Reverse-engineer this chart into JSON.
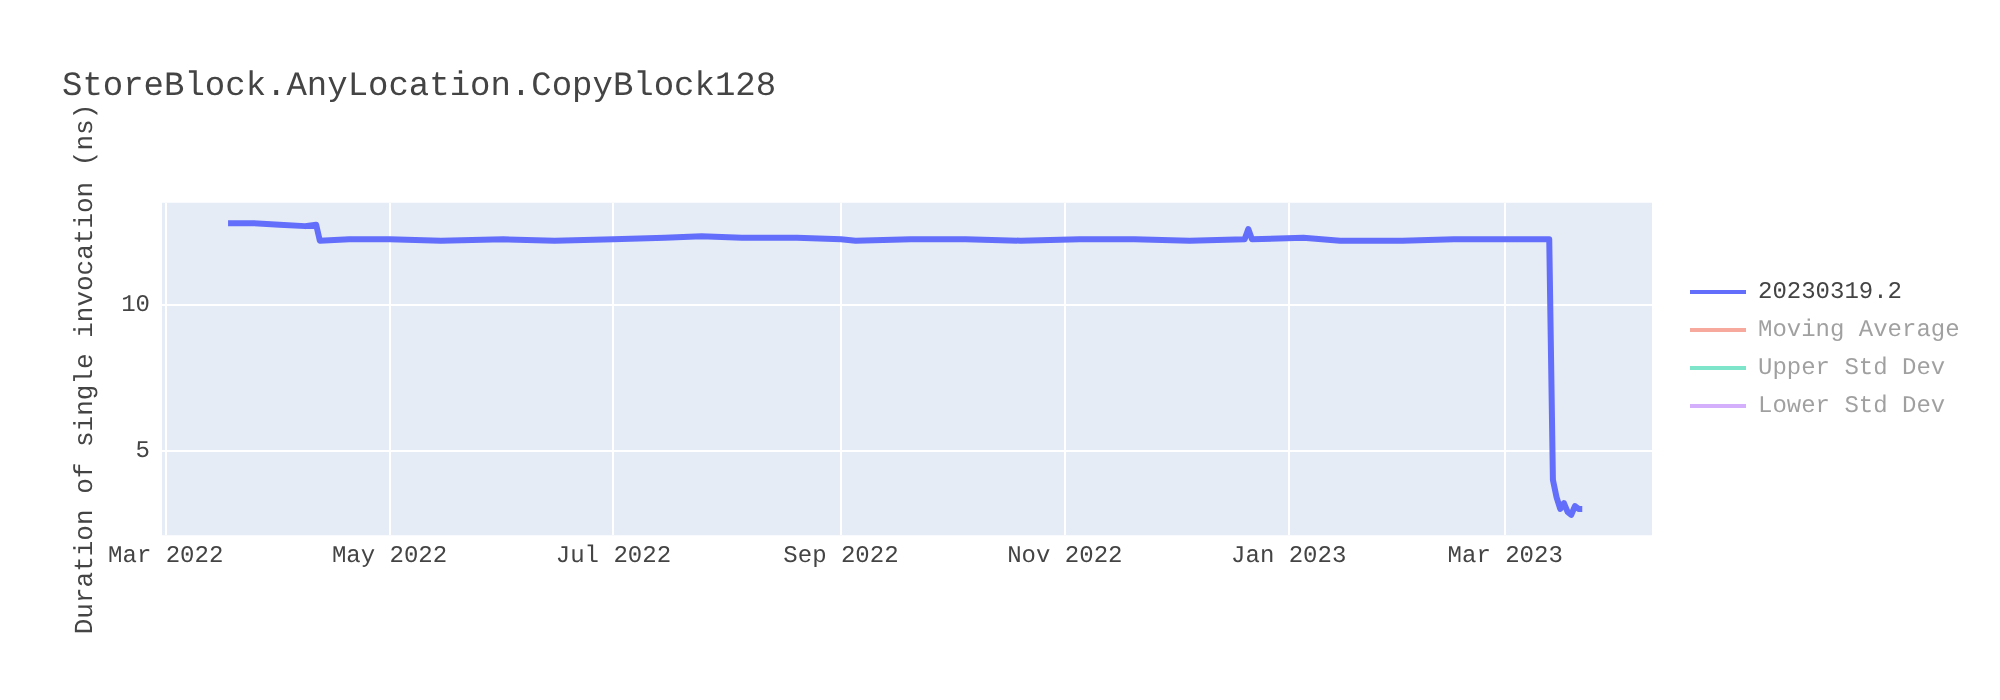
{
  "chart_data": {
    "type": "line",
    "title": "StoreBlock.AnyLocation.CopyBlock128",
    "ylabel": "Duration of single invocation (ns)",
    "x": [
      "2022-03-18",
      "2022-03-25",
      "2022-04-01",
      "2022-04-08",
      "2022-04-11",
      "2022-04-12",
      "2022-04-20",
      "2022-05-01",
      "2022-05-15",
      "2022-06-01",
      "2022-06-15",
      "2022-07-01",
      "2022-07-15",
      "2022-07-25",
      "2022-08-05",
      "2022-08-20",
      "2022-09-01",
      "2022-09-05",
      "2022-09-20",
      "2022-10-05",
      "2022-10-20",
      "2022-11-05",
      "2022-11-20",
      "2022-12-05",
      "2022-12-20",
      "2022-12-21",
      "2022-12-22",
      "2023-01-05",
      "2023-01-15",
      "2023-02-01",
      "2023-02-15",
      "2023-03-01",
      "2023-03-13",
      "2023-03-14",
      "2023-03-15",
      "2023-03-16",
      "2023-03-17",
      "2023-03-18",
      "2023-03-19",
      "2023-03-20",
      "2023-03-21",
      "2023-03-22"
    ],
    "series": [
      {
        "name": "20230319.2",
        "color": "#636efa",
        "values": [
          12.8,
          12.8,
          12.75,
          12.7,
          12.75,
          12.2,
          12.25,
          12.25,
          12.2,
          12.25,
          12.2,
          12.25,
          12.3,
          12.35,
          12.3,
          12.3,
          12.25,
          12.2,
          12.25,
          12.25,
          12.2,
          12.25,
          12.25,
          12.2,
          12.25,
          12.6,
          12.25,
          12.3,
          12.2,
          12.2,
          12.25,
          12.25,
          12.25,
          4.0,
          3.4,
          3.0,
          3.2,
          2.9,
          2.8,
          3.1,
          3.0,
          3.0
        ]
      },
      {
        "name": "Moving Average",
        "color": "#ef553b",
        "values": [
          null,
          null,
          null,
          null,
          null,
          null,
          null,
          null,
          null,
          null,
          null,
          null,
          null,
          null,
          null,
          null,
          null,
          null,
          null,
          null,
          null,
          null,
          null,
          null,
          null,
          null,
          null,
          null,
          null,
          null,
          null,
          null,
          null,
          null,
          null,
          null,
          null,
          null,
          null,
          null,
          null,
          null
        ]
      },
      {
        "name": "Upper Std Dev",
        "color": "#00cc96",
        "values": [
          null,
          null,
          null,
          null,
          null,
          null,
          null,
          null,
          null,
          null,
          null,
          null,
          null,
          null,
          null,
          null,
          null,
          null,
          null,
          null,
          null,
          null,
          null,
          null,
          null,
          null,
          null,
          null,
          null,
          null,
          null,
          null,
          null,
          null,
          null,
          null,
          null,
          null,
          null,
          null,
          null,
          null
        ]
      },
      {
        "name": "Lower Std Dev",
        "color": "#ab63fa",
        "values": [
          null,
          null,
          null,
          null,
          null,
          null,
          null,
          null,
          null,
          null,
          null,
          null,
          null,
          null,
          null,
          null,
          null,
          null,
          null,
          null,
          null,
          null,
          null,
          null,
          null,
          null,
          null,
          null,
          null,
          null,
          null,
          null,
          null,
          null,
          null,
          null,
          null,
          null,
          null,
          null,
          null,
          null
        ]
      }
    ],
    "xlim": [
      "2022-02-28",
      "2023-04-10"
    ],
    "xticks": [
      {
        "value": "2022-03-01",
        "label": "Mar 2022"
      },
      {
        "value": "2022-05-01",
        "label": "May 2022"
      },
      {
        "value": "2022-07-01",
        "label": "Jul 2022"
      },
      {
        "value": "2022-09-01",
        "label": "Sep 2022"
      },
      {
        "value": "2022-11-01",
        "label": "Nov 2022"
      },
      {
        "value": "2023-01-01",
        "label": "Jan 2023"
      },
      {
        "value": "2023-03-01",
        "label": "Mar 2023"
      }
    ],
    "ylim": [
      2.1,
      13.5
    ],
    "yticks": [
      5,
      10
    ],
    "grid": true,
    "legend": "top right",
    "marker": "none",
    "line_style": "solid"
  }
}
